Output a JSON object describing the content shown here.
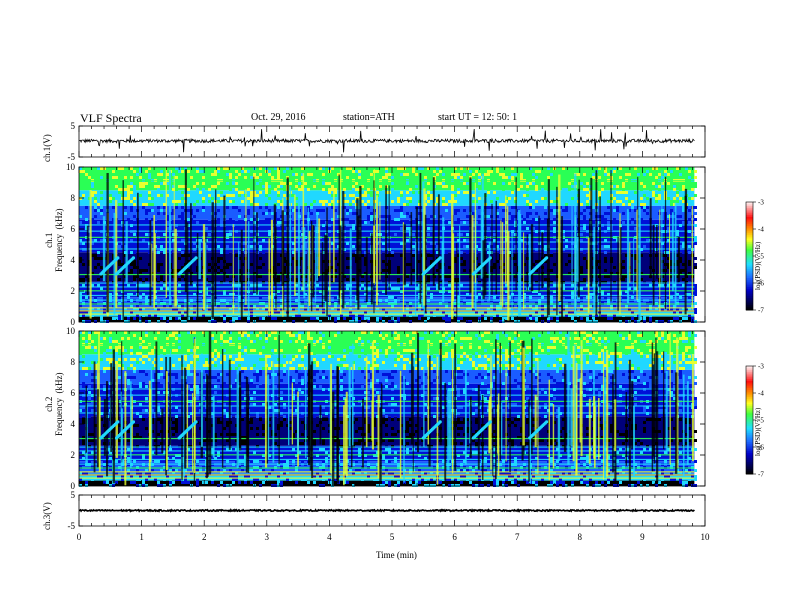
{
  "header": {
    "title": "VLF  Spectra",
    "date": "Oct. 29, 2016",
    "station": "station=ATH",
    "start": "start  UT  =    12: 50: 1"
  },
  "chart_data": [
    {
      "type": "line",
      "panel": "ch1-waveform",
      "ylabel": "ch.1(V)",
      "ylim": [
        -5,
        5
      ],
      "yticks": [
        "5",
        "-5"
      ],
      "xlim": [
        0,
        10
      ],
      "xdata_range": [
        0,
        9.83
      ],
      "level": 0.2
    },
    {
      "type": "heatmap",
      "panel": "ch1-spectrogram",
      "ylabel": "ch.1\nFrequency  (kHz)",
      "ylim": [
        0,
        10
      ],
      "yticks": [
        "0",
        "2",
        "4",
        "6",
        "8",
        "10"
      ],
      "xlim": [
        0,
        10
      ],
      "xdata_range": [
        0,
        9.83
      ],
      "colorbar": {
        "label": "log(PSD)(V²/Hz)",
        "range": [
          -7,
          -3
        ],
        "ticks": [
          "-3",
          "-4",
          "-5",
          "-6",
          "-7"
        ]
      }
    },
    {
      "type": "heatmap",
      "panel": "ch2-spectrogram",
      "ylabel": "ch.2\nFrequency  (kHz)",
      "ylim": [
        0,
        10
      ],
      "yticks": [
        "0",
        "2",
        "4",
        "6",
        "8",
        "10"
      ],
      "xlim": [
        0,
        10
      ],
      "xdata_range": [
        0,
        9.83
      ],
      "colorbar": {
        "label": "log(PSD)(V²/Hz)",
        "range": [
          -7,
          -3
        ],
        "ticks": [
          "-3",
          "-4",
          "-5",
          "-6",
          "-7"
        ]
      }
    },
    {
      "type": "line",
      "panel": "ch3-waveform",
      "ylabel": "ch.3(V)",
      "ylim": [
        -5,
        5
      ],
      "yticks": [
        "5",
        "-5"
      ],
      "xlim": [
        0,
        10
      ],
      "xdata_range": [
        0,
        9.83
      ],
      "level": 0
    }
  ],
  "xaxis": {
    "label": "Time  (min)",
    "ticks": [
      "0",
      "1",
      "2",
      "3",
      "4",
      "5",
      "6",
      "7",
      "8",
      "9",
      "10"
    ]
  },
  "colors": {
    "dark": "#000000",
    "deep_blue": "#00007a",
    "blue": "#0010d8",
    "mid_blue": "#1a5cff",
    "cyan": "#20d8ff",
    "green": "#2aff55",
    "yellow": "#e8ff30",
    "orange": "#ffa000",
    "red": "#ff1010"
  }
}
